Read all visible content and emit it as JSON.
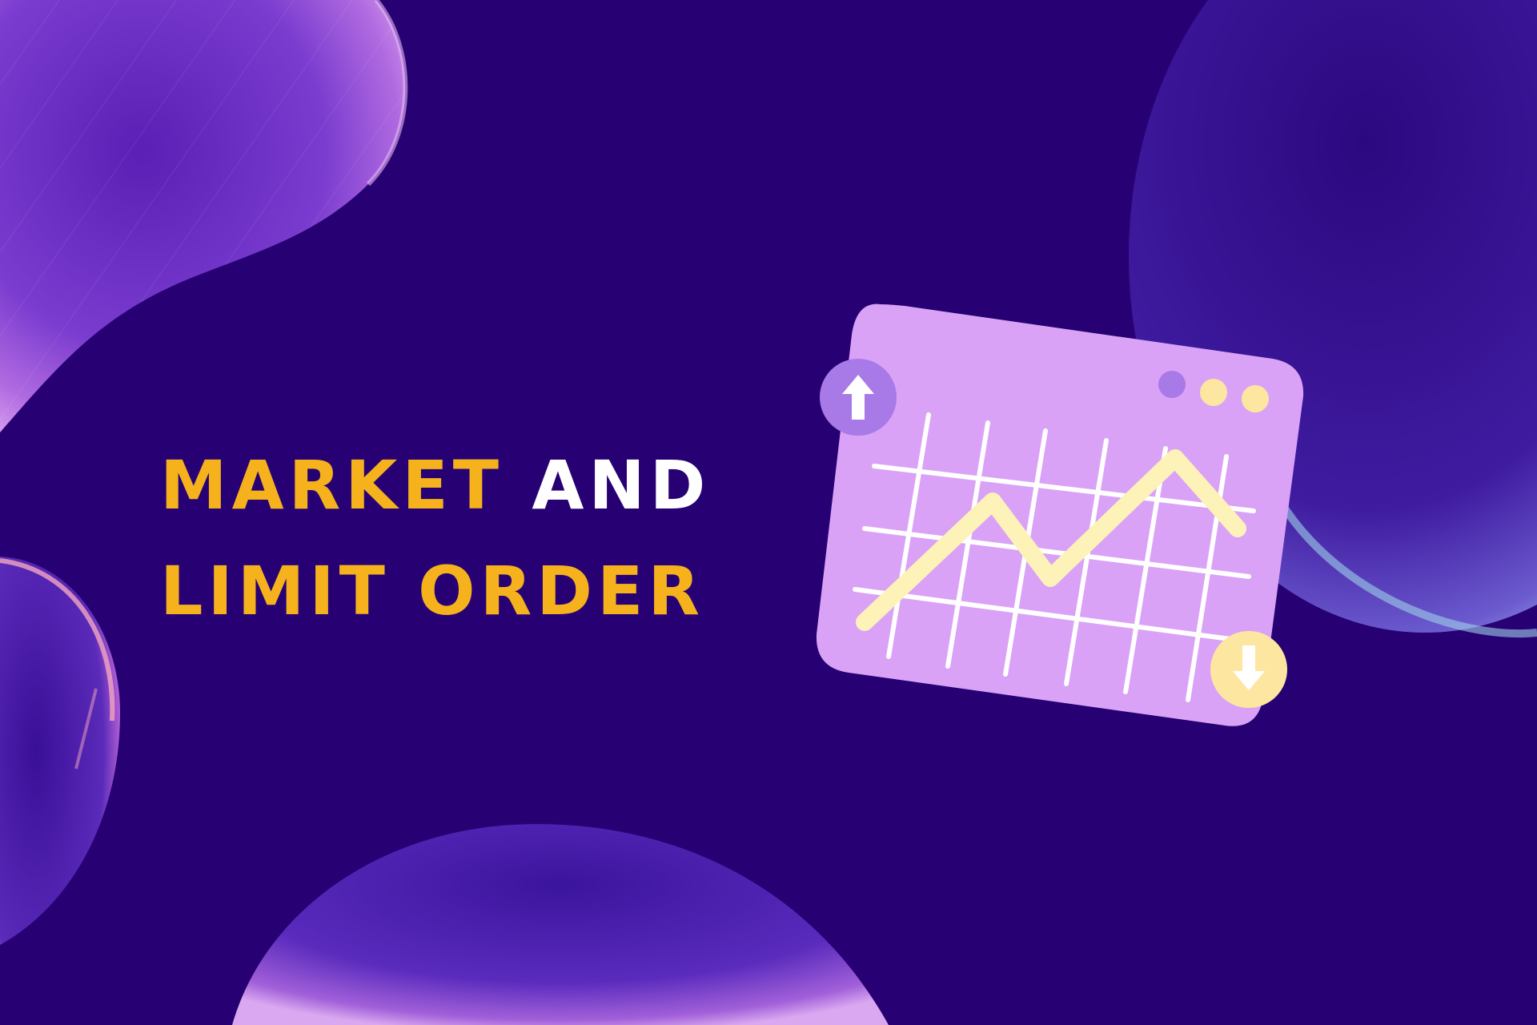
{
  "headline": {
    "word_1": "Market",
    "word_2": "and",
    "line_2": "Limit order"
  },
  "illustration": {
    "icons": [
      "up-arrow-icon",
      "down-arrow-icon",
      "window-dots-icon",
      "line-chart-icon"
    ]
  },
  "colors": {
    "background": "#270174",
    "headline_gold": "#f5b21c",
    "headline_white": "#ffffff",
    "panel": "#d9a2f6",
    "chart_line": "#fdf2b8",
    "grid": "#ffffff",
    "up_badge": "#a87ae8",
    "down_badge": "#fde7a0"
  }
}
